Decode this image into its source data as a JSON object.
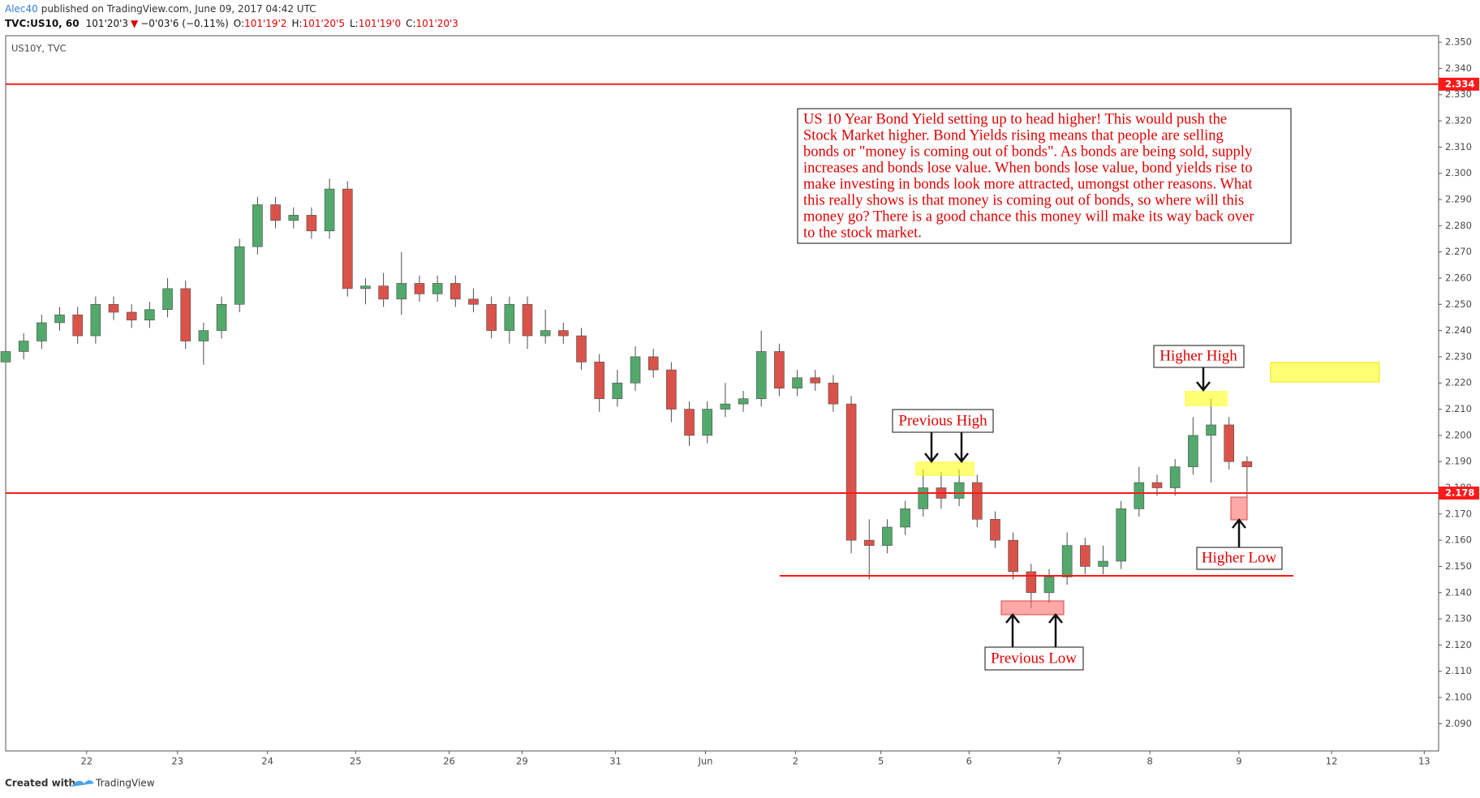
{
  "header": {
    "author": "Alec40",
    "published": "published on TradingView.com, June 09, 2017 04:42 UTC",
    "symbol": "TVC:US10, 60",
    "last": "101'20'3",
    "arrow": "▼",
    "change": "−0'03'6 (−0.11%)",
    "o_label": "O:",
    "o_value": "101'19'2",
    "h_label": "H:",
    "h_value": "101'20'5",
    "l_label": "L:",
    "l_value": "101'19'0",
    "c_label": "C:",
    "c_value": "101'20'3"
  },
  "footer": {
    "created": "Created with",
    "brand": "TradingView"
  },
  "chart_data": {
    "type": "candlestick",
    "symbol_label": "US10Y, TVC",
    "xlim": [
      0,
      15.93
    ],
    "ylim": [
      2.0796,
      2.3525
    ],
    "xticks": [
      {
        "value": 0.9,
        "label": "22"
      },
      {
        "value": 1.91,
        "label": "23"
      },
      {
        "value": 2.91,
        "label": "24"
      },
      {
        "value": 3.89,
        "label": "25"
      },
      {
        "value": 4.93,
        "label": "26"
      },
      {
        "value": 5.74,
        "label": "29"
      },
      {
        "value": 6.78,
        "label": "31"
      },
      {
        "value": 7.78,
        "label": "Jun"
      },
      {
        "value": 8.78,
        "label": "2"
      },
      {
        "value": 9.73,
        "label": "5"
      },
      {
        "value": 10.71,
        "label": "6"
      },
      {
        "value": 11.71,
        "label": "7"
      },
      {
        "value": 12.72,
        "label": "8"
      },
      {
        "value": 13.71,
        "label": "9"
      },
      {
        "value": 14.74,
        "label": "12"
      },
      {
        "value": 15.77,
        "label": "13"
      }
    ],
    "yticks": [
      {
        "value": 2.09,
        "label": "2.090"
      },
      {
        "value": 2.1,
        "label": "2.100"
      },
      {
        "value": 2.11,
        "label": "2.110"
      },
      {
        "value": 2.12,
        "label": "2.120"
      },
      {
        "value": 2.13,
        "label": "2.130"
      },
      {
        "value": 2.14,
        "label": "2.140"
      },
      {
        "value": 2.15,
        "label": "2.150"
      },
      {
        "value": 2.16,
        "label": "2.160"
      },
      {
        "value": 2.17,
        "label": "2.170"
      },
      {
        "value": 2.18,
        "label": "2.180"
      },
      {
        "value": 2.19,
        "label": "2.190"
      },
      {
        "value": 2.2,
        "label": "2.200"
      },
      {
        "value": 2.21,
        "label": "2.210"
      },
      {
        "value": 2.22,
        "label": "2.220"
      },
      {
        "value": 2.23,
        "label": "2.230"
      },
      {
        "value": 2.24,
        "label": "2.240"
      },
      {
        "value": 2.25,
        "label": "2.250"
      },
      {
        "value": 2.26,
        "label": "2.260"
      },
      {
        "value": 2.27,
        "label": "2.270"
      },
      {
        "value": 2.28,
        "label": "2.280"
      },
      {
        "value": 2.29,
        "label": "2.290"
      },
      {
        "value": 2.3,
        "label": "2.300"
      },
      {
        "value": 2.31,
        "label": "2.310"
      },
      {
        "value": 2.32,
        "label": "2.320"
      },
      {
        "value": 2.33,
        "label": "2.330"
      },
      {
        "value": 2.34,
        "label": "2.340"
      },
      {
        "value": 2.35,
        "label": "2.350"
      }
    ],
    "up_color": "#53a86b",
    "down_color": "#d9534a",
    "wick_color": "#4d4d4d",
    "x": [
      0,
      0.2,
      0.4,
      0.6,
      0.8,
      1,
      1.2,
      1.4,
      1.6,
      1.8,
      2,
      2.2,
      2.4,
      2.6,
      2.8,
      3,
      3.2,
      3.4,
      3.6,
      3.8,
      4,
      4.2,
      4.4,
      4.6,
      4.8,
      5,
      5.2,
      5.4,
      5.6,
      5.8,
      6,
      6.2,
      6.4,
      6.6,
      6.8,
      7,
      7.2,
      7.4,
      7.6,
      7.8,
      8,
      8.2,
      8.4,
      8.6,
      8.8,
      9,
      9.2,
      9.4,
      9.6,
      9.8,
      10,
      10.2,
      10.4,
      10.6,
      10.8,
      11,
      11.2,
      11.4,
      11.6,
      11.8,
      12,
      12.2,
      12.4,
      12.6,
      12.8,
      13,
      13.2,
      13.4,
      13.6,
      13.8
    ],
    "open": [
      2.228,
      2.232,
      2.236,
      2.243,
      2.246,
      2.238,
      2.25,
      2.247,
      2.244,
      2.248,
      2.256,
      2.236,
      2.24,
      2.25,
      2.272,
      2.288,
      2.282,
      2.284,
      2.278,
      2.294,
      2.256,
      2.257,
      2.252,
      2.258,
      2.254,
      2.258,
      2.252,
      2.25,
      2.24,
      2.25,
      2.238,
      2.24,
      2.238,
      2.228,
      2.214,
      2.22,
      2.23,
      2.225,
      2.21,
      2.2,
      2.21,
      2.212,
      2.214,
      2.232,
      2.218,
      2.222,
      2.22,
      2.212,
      2.16,
      2.158,
      2.165,
      2.172,
      2.18,
      2.176,
      2.182,
      2.168,
      2.16,
      2.148,
      2.14,
      2.146,
      2.158,
      2.15,
      2.152,
      2.172,
      2.182,
      2.18,
      2.188,
      2.2,
      2.204,
      2.19
    ],
    "high": [
      2.235,
      2.239,
      2.246,
      2.249,
      2.249,
      2.253,
      2.253,
      2.25,
      2.251,
      2.26,
      2.259,
      2.243,
      2.253,
      2.275,
      2.291,
      2.291,
      2.287,
      2.287,
      2.298,
      2.297,
      2.26,
      2.262,
      2.27,
      2.261,
      2.261,
      2.261,
      2.256,
      2.253,
      2.253,
      2.253,
      2.248,
      2.243,
      2.241,
      2.231,
      2.225,
      2.234,
      2.233,
      2.228,
      2.213,
      2.213,
      2.22,
      2.217,
      2.24,
      2.235,
      2.225,
      2.225,
      2.223,
      2.215,
      2.168,
      2.168,
      2.175,
      2.187,
      2.186,
      2.187,
      2.185,
      2.171,
      2.163,
      2.151,
      2.149,
      2.163,
      2.161,
      2.158,
      2.175,
      2.188,
      2.185,
      2.191,
      2.207,
      2.214,
      2.207,
      2.192
    ],
    "low": [
      2.225,
      2.229,
      2.233,
      2.24,
      2.235,
      2.235,
      2.244,
      2.241,
      2.241,
      2.245,
      2.233,
      2.227,
      2.237,
      2.247,
      2.269,
      2.279,
      2.279,
      2.275,
      2.275,
      2.253,
      2.25,
      2.249,
      2.246,
      2.251,
      2.251,
      2.249,
      2.247,
      2.237,
      2.235,
      2.233,
      2.235,
      2.235,
      2.225,
      2.209,
      2.211,
      2.217,
      2.222,
      2.205,
      2.196,
      2.197,
      2.207,
      2.209,
      2.211,
      2.215,
      2.215,
      2.217,
      2.209,
      2.155,
      2.145,
      2.155,
      2.162,
      2.169,
      2.172,
      2.173,
      2.165,
      2.157,
      2.145,
      2.134,
      2.136,
      2.143,
      2.147,
      2.147,
      2.149,
      2.169,
      2.177,
      2.177,
      2.185,
      2.182,
      2.187,
      2.176
    ],
    "close": [
      2.232,
      2.236,
      2.243,
      2.246,
      2.238,
      2.25,
      2.247,
      2.244,
      2.248,
      2.256,
      2.236,
      2.24,
      2.25,
      2.272,
      2.288,
      2.282,
      2.284,
      2.278,
      2.294,
      2.256,
      2.257,
      2.252,
      2.258,
      2.254,
      2.258,
      2.252,
      2.25,
      2.24,
      2.25,
      2.238,
      2.24,
      2.238,
      2.228,
      2.214,
      2.22,
      2.23,
      2.225,
      2.21,
      2.2,
      2.21,
      2.212,
      2.214,
      2.232,
      2.218,
      2.222,
      2.22,
      2.212,
      2.16,
      2.158,
      2.165,
      2.172,
      2.18,
      2.176,
      2.182,
      2.168,
      2.16,
      2.148,
      2.14,
      2.146,
      2.158,
      2.15,
      2.152,
      2.172,
      2.182,
      2.18,
      2.188,
      2.2,
      2.204,
      2.19,
      2.188
    ],
    "price_lines": [
      {
        "value": 2.334,
        "label": "2.334",
        "color": "#ff1a1a"
      },
      {
        "value": 2.178,
        "label": "2.178",
        "color": "#ff1a1a"
      }
    ],
    "note_lines": [
      "US 10 Year Bond Yield setting up to head higher! This would push the",
      "Stock Market higher. Bond Yields rising means that people are selling",
      "bonds or \"money is coming out of bonds\". As bonds are being sold, supply",
      "increases and bonds lose value. When bonds lose value, bond yields rise to",
      "make investing in bonds look more attracted, umongst other reasons. What",
      "this really shows is that money is coming out of bonds, so where will this",
      "money go? There is a good chance this money will make its way back over",
      "to the stock market."
    ],
    "labels": [
      "Previous High",
      "Higher High",
      "Higher Low",
      "Previous Low"
    ]
  }
}
